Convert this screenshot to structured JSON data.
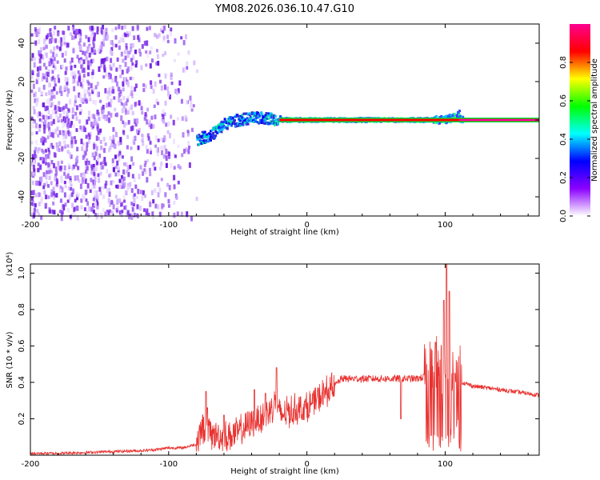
{
  "chart_data": [
    {
      "type": "heatmap",
      "title": "YM08.2026.036.10.47.G10",
      "xlabel": "Height of straight line (km)",
      "ylabel": "Frequency (Hz)",
      "xlim": [
        -200,
        168
      ],
      "ylim": [
        -50,
        50
      ],
      "xticks": [
        -200,
        -100,
        0,
        100
      ],
      "xtick_labels": [
        "-200",
        "-100",
        "0",
        "100"
      ],
      "yticks": [
        -40,
        -20,
        0,
        20,
        40
      ],
      "ytick_labels": [
        "-40",
        "-20",
        "0",
        "20",
        "40"
      ],
      "colorbar": {
        "label": "Normalized spectral amplitude",
        "range": [
          0,
          1
        ],
        "ticks": [
          0.0,
          0.2,
          0.4,
          0.6,
          0.8
        ],
        "tick_labels": [
          "0.0",
          "0.2",
          "0.4",
          "0.6",
          "0.8"
        ],
        "colormap": [
          "#ffffff",
          "#8b00ff",
          "#0000ff",
          "#00ffff",
          "#00ff00",
          "#ffff00",
          "#ff0000",
          "#ff0090"
        ]
      },
      "features": {
        "noise_region_x": [
          -200,
          -80
        ],
        "transition_region_x": [
          -80,
          -20
        ],
        "tone_x": [
          -20,
          168
        ],
        "tone_frequency_hz": 0,
        "tone_peak_amplitude": 1.0,
        "ridge": [
          {
            "x": -80,
            "f": -10
          },
          {
            "x": -70,
            "f": -8
          },
          {
            "x": -60,
            "f": -2
          },
          {
            "x": -50,
            "f": 0
          },
          {
            "x": -40,
            "f": 1
          },
          {
            "x": -30,
            "f": 1
          },
          {
            "x": -20,
            "f": 0
          },
          {
            "x": 0,
            "f": 0
          },
          {
            "x": 100,
            "f": 0
          },
          {
            "x": 110,
            "f": 3
          }
        ]
      }
    },
    {
      "type": "line",
      "xlabel": "Height of straight line (km)",
      "ylabel": "SNR (10 * v/v)",
      "y_scale_label": "(x10⁴)",
      "xlim": [
        -200,
        168
      ],
      "ylim": [
        0,
        1.05
      ],
      "xticks": [
        -200,
        -100,
        0,
        100
      ],
      "xtick_labels": [
        "-200",
        "-100",
        "0",
        "100"
      ],
      "yticks": [
        0.2,
        0.4,
        0.6,
        0.8,
        1.0
      ],
      "ytick_labels": [
        "0.2",
        "0.4",
        "0.6",
        "0.8",
        "1.0"
      ],
      "series": [
        {
          "name": "SNR",
          "color": "#e8312f",
          "x": [
            -200,
            -180,
            -160,
            -140,
            -120,
            -110,
            -100,
            -90,
            -80,
            -76,
            -70,
            -60,
            -50,
            -40,
            -30,
            -22,
            -20,
            -10,
            0,
            10,
            20,
            25,
            40,
            60,
            70,
            80,
            90,
            95,
            100,
            105,
            110,
            112,
            120,
            140,
            168
          ],
          "y": [
            0.01,
            0.01,
            0.015,
            0.02,
            0.025,
            0.03,
            0.04,
            0.04,
            0.06,
            0.15,
            0.12,
            0.1,
            0.12,
            0.18,
            0.22,
            0.3,
            0.22,
            0.25,
            0.26,
            0.32,
            0.38,
            0.42,
            0.42,
            0.42,
            0.42,
            0.42,
            0.44,
            0.48,
            0.4,
            0.35,
            0.38,
            0.4,
            0.38,
            0.36,
            0.33
          ]
        }
      ],
      "spikes": [
        {
          "x": -73,
          "y": 0.35
        },
        {
          "x": -72,
          "y": 0.26
        },
        {
          "x": -60,
          "y": 0.22
        },
        {
          "x": -38,
          "y": 0.36
        },
        {
          "x": -30,
          "y": 0.34
        },
        {
          "x": -22,
          "y": 0.48
        },
        {
          "x": 68,
          "y": 0.2
        },
        {
          "x": 93,
          "y": 0.62
        },
        {
          "x": 99,
          "y": 0.85
        },
        {
          "x": 101,
          "y": 1.05
        },
        {
          "x": 103,
          "y": 0.9
        },
        {
          "x": 107,
          "y": 0.45
        }
      ]
    }
  ]
}
